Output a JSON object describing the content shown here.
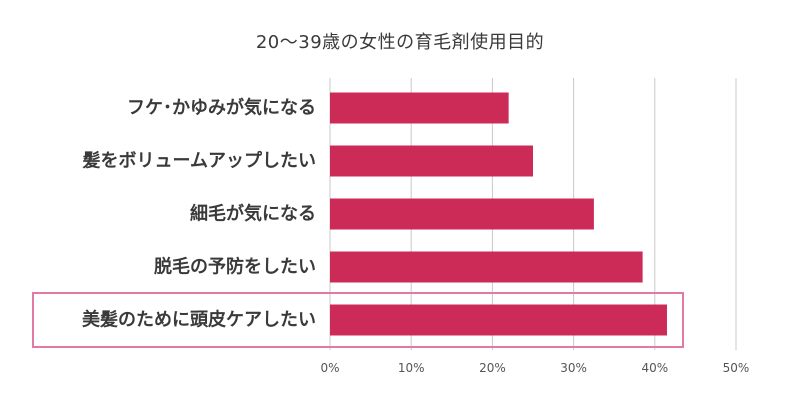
{
  "chart_data": {
    "type": "bar",
    "orientation": "horizontal",
    "title": "20～39歳の女性の育毛剤使用目的",
    "categories": [
      "フケ･かゆみが気になる",
      "髪をボリュームアップしたい",
      "細毛が気になる",
      "脱毛の予防をしたい",
      "美髪のために頭皮ケアしたい"
    ],
    "values": [
      22,
      25,
      32.5,
      38.5,
      41.5
    ],
    "xlim": [
      0,
      50
    ],
    "x_ticks": [
      0,
      10,
      20,
      30,
      40,
      50
    ],
    "x_tick_labels": [
      "0%",
      "10%",
      "20%",
      "30%",
      "40%",
      "50%"
    ],
    "grid": true,
    "highlighted_category": "美髪のために頭皮ケアしたい",
    "colors": {
      "bar": "#cc2b58",
      "highlight_box": "#e27aa8",
      "grid": "#c9c9c9",
      "text": "#3a3a3a"
    }
  }
}
